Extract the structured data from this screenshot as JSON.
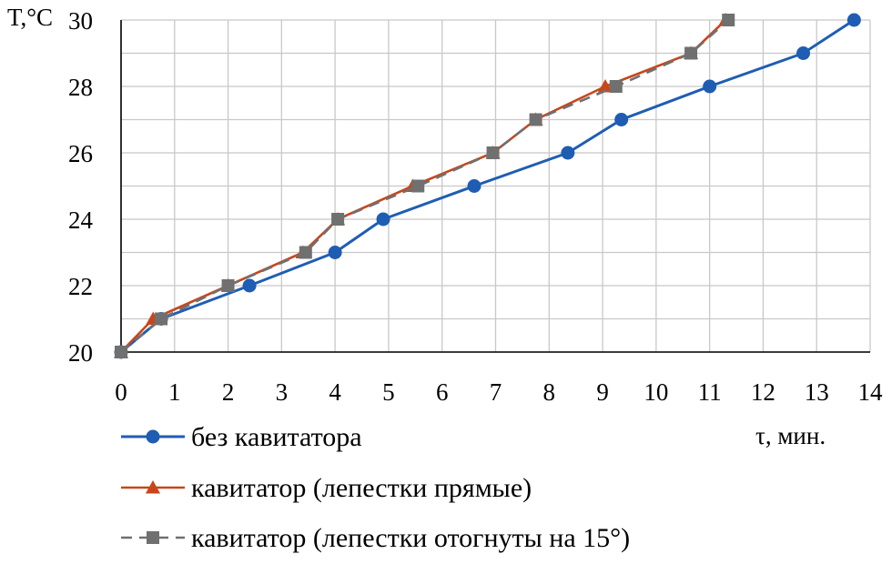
{
  "chart_data": {
    "type": "line",
    "xlabel": "τ, мин.",
    "ylabel": "T,°C",
    "xlim": [
      0,
      14
    ],
    "ylim": [
      20,
      30
    ],
    "x_ticks": [
      "0",
      "1",
      "2",
      "3",
      "4",
      "5",
      "6",
      "7",
      "8",
      "9",
      "10",
      "11",
      "12",
      "13",
      "14"
    ],
    "y_ticks": [
      "20",
      "22",
      "24",
      "26",
      "28",
      "30"
    ],
    "grid": true,
    "legend_position": "bottom",
    "series": [
      {
        "name": "без кавитатора",
        "color": "#1f5db3",
        "marker": "circle",
        "dash": "solid",
        "points": [
          [
            0,
            20
          ],
          [
            0.75,
            21
          ],
          [
            2.4,
            22
          ],
          [
            4,
            23
          ],
          [
            4.9,
            24
          ],
          [
            6.6,
            25
          ],
          [
            8.35,
            26
          ],
          [
            9.35,
            27
          ],
          [
            11,
            28
          ],
          [
            12.75,
            29
          ],
          [
            13.7,
            30
          ]
        ]
      },
      {
        "name": "кавитатор (лепестки прямые)",
        "color": "#c8461c",
        "marker": "triangle",
        "dash": "solid",
        "points": [
          [
            0,
            20
          ],
          [
            0.6,
            21
          ],
          [
            2,
            22
          ],
          [
            3.4,
            23
          ],
          [
            4.05,
            24
          ],
          [
            5.45,
            25
          ],
          [
            6.95,
            26
          ],
          [
            7.75,
            27
          ],
          [
            9.05,
            28
          ],
          [
            10.65,
            29
          ],
          [
            11.3,
            30
          ]
        ]
      },
      {
        "name": "кавитатор (лепестки отогнуты на 15°)",
        "color": "#707070",
        "marker": "square",
        "dash": "dashed",
        "points": [
          [
            0,
            20
          ],
          [
            0.75,
            21
          ],
          [
            2,
            22
          ],
          [
            3.45,
            23
          ],
          [
            4.05,
            24
          ],
          [
            5.55,
            25
          ],
          [
            6.95,
            26
          ],
          [
            7.75,
            27
          ],
          [
            9.25,
            28
          ],
          [
            10.65,
            29
          ],
          [
            11.35,
            30
          ]
        ]
      }
    ]
  }
}
